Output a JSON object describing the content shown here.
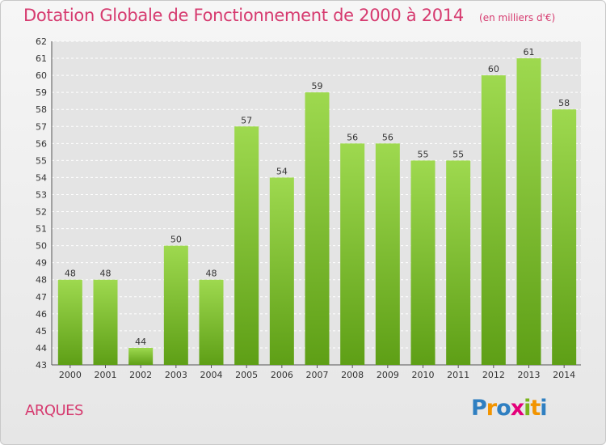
{
  "title": "Dotation Globale de Fonctionnement de 2000 à 2014",
  "subtitle": "(en milliers d'€)",
  "place": "ARQUES",
  "brand": {
    "letters": [
      {
        "ch": "P",
        "color": "#2f7fc1"
      },
      {
        "ch": "r",
        "color": "#f29400"
      },
      {
        "ch": "o",
        "color": "#2f7fc1"
      },
      {
        "ch": "x",
        "color": "#e4007a"
      },
      {
        "ch": "i",
        "color": "#7ab51d"
      },
      {
        "ch": "t",
        "color": "#f29400"
      },
      {
        "ch": "i",
        "color": "#2f7fc1"
      }
    ]
  },
  "colors": {
    "bar_top": "#9ed94f",
    "bar_bottom": "#5e9f16",
    "accent": "#d63a6f",
    "grid": "#ffffff"
  },
  "chart_data": {
    "type": "bar",
    "categories": [
      "2000",
      "2001",
      "2002",
      "2003",
      "2004",
      "2005",
      "2006",
      "2007",
      "2008",
      "2009",
      "2010",
      "2011",
      "2012",
      "2013",
      "2014"
    ],
    "values": [
      48,
      48,
      44,
      50,
      48,
      57,
      54,
      59,
      56,
      56,
      55,
      55,
      60,
      61,
      58
    ],
    "ylim": [
      43,
      62
    ],
    "yticks": [
      43,
      44,
      45,
      46,
      47,
      48,
      49,
      50,
      51,
      52,
      53,
      54,
      55,
      56,
      57,
      58,
      59,
      60,
      61,
      62
    ],
    "grid": true,
    "xlabel": "",
    "ylabel": ""
  }
}
